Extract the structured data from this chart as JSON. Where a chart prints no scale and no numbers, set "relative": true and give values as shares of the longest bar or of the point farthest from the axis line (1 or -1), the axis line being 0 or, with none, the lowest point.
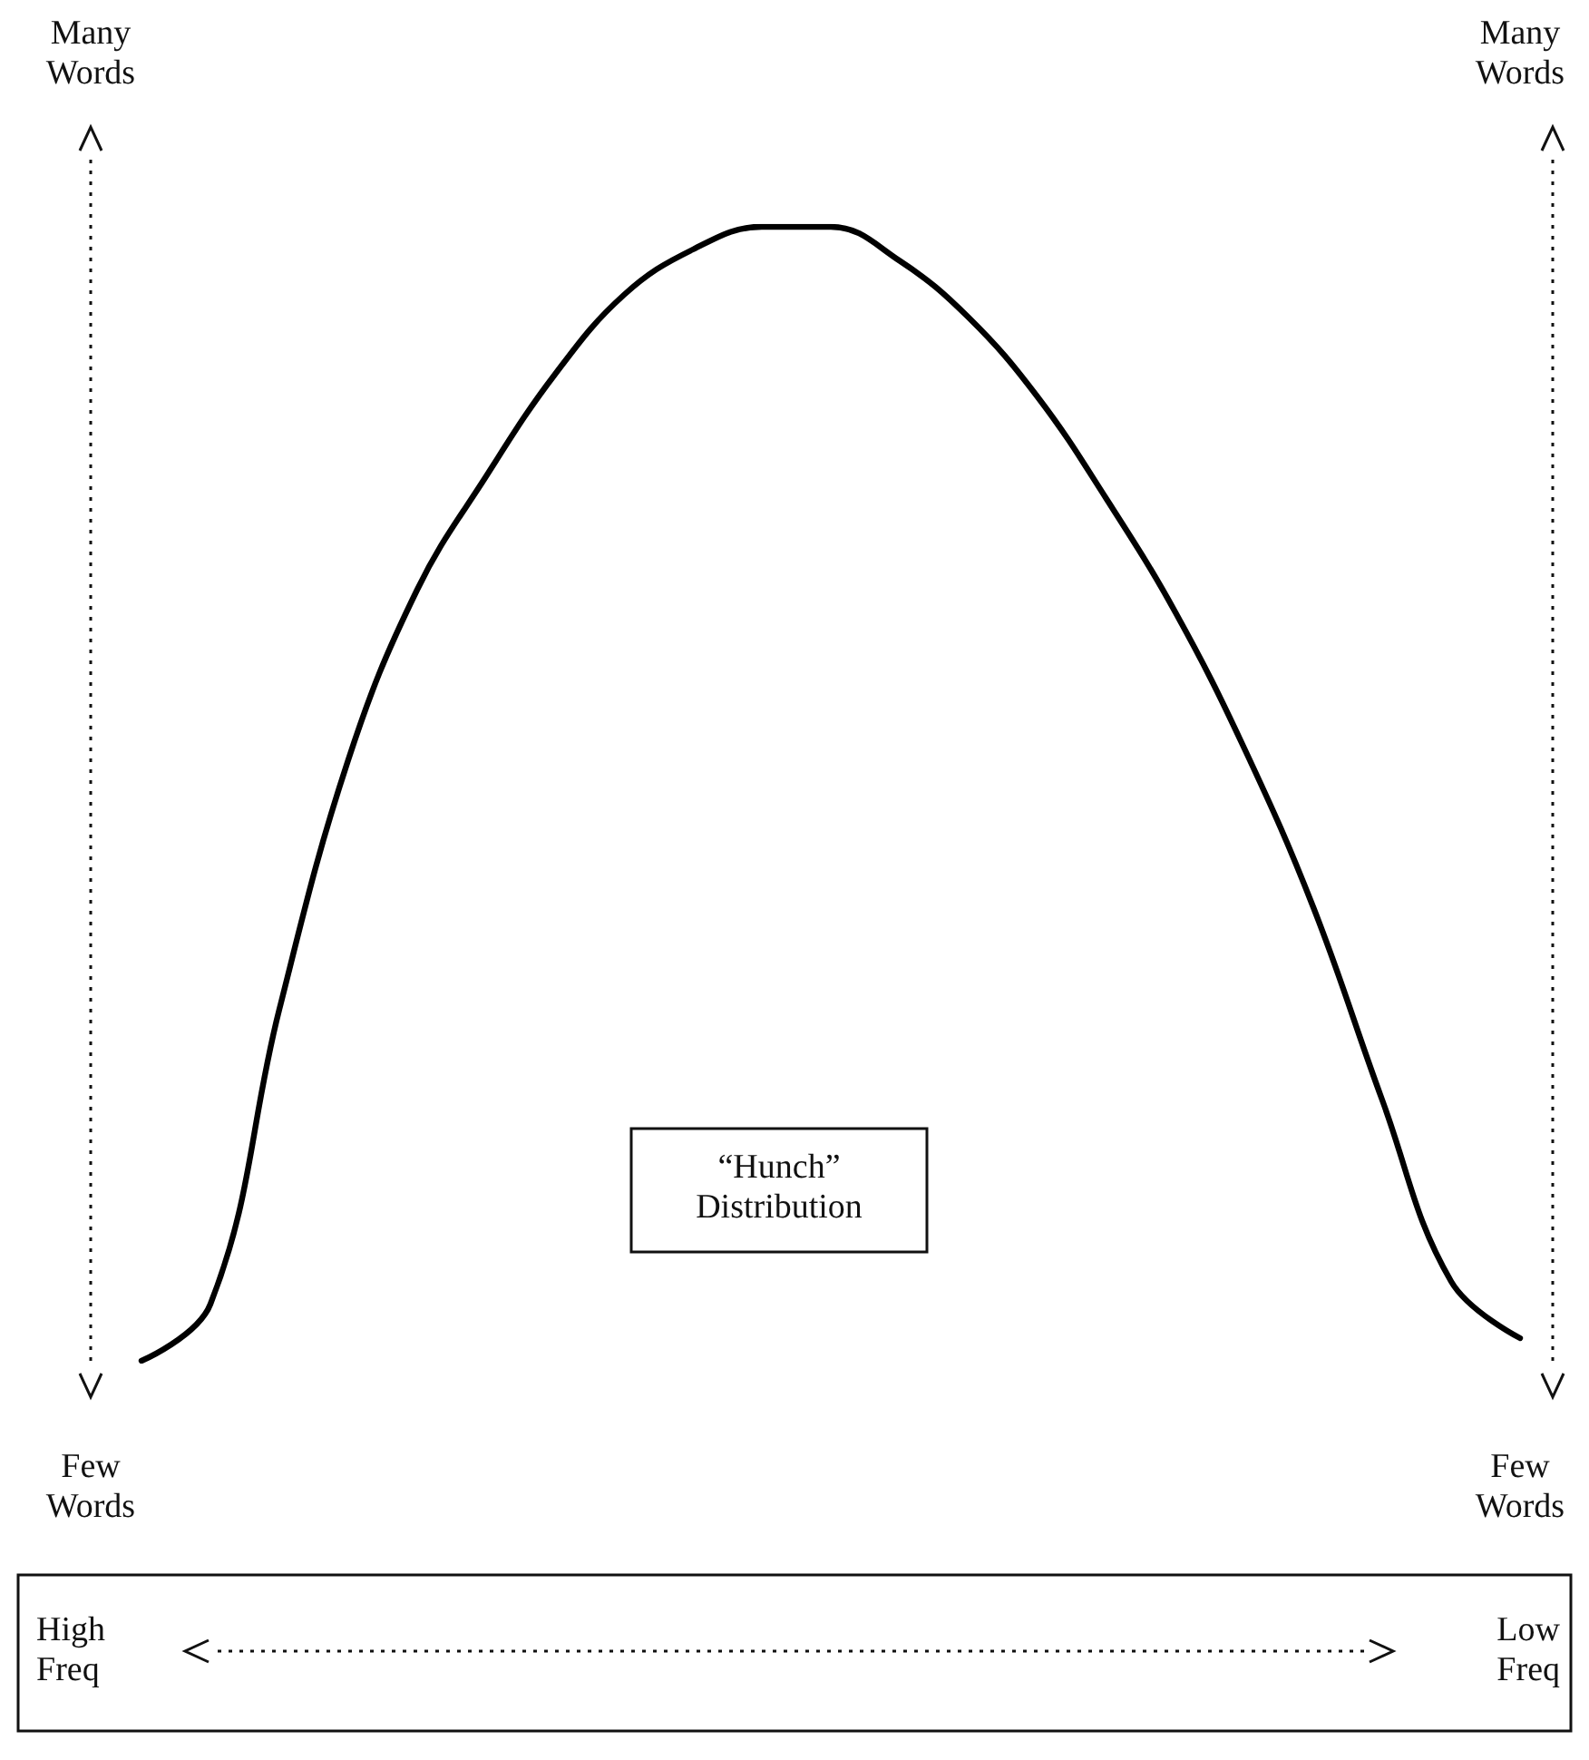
{
  "chart_data": {
    "type": "line",
    "relative": true,
    "categories": [
      null,
      null,
      null,
      null,
      null,
      null,
      null,
      null,
      null,
      null,
      null,
      null,
      null,
      null,
      null,
      null,
      null,
      null,
      null,
      null,
      null
    ],
    "series": [
      {
        "color": "#000000",
        "values": [
          0,
          0.05,
          0.31,
          0.53,
          0.68,
          0.78,
          0.87,
          0.94,
          0.98,
          1,
          1,
          0.97,
          0.92,
          0.85,
          0.76,
          0.66,
          0.54,
          0.4,
          0.23,
          0.07,
          0.02
        ]
      }
    ],
    "marker": "none",
    "line_style": "solid",
    "grid": false,
    "annotations": [
      "Many Words",
      "Few Words",
      "Many Words",
      "Few Words",
      "High Freq",
      "Low Freq",
      "“Hunch” Distribution"
    ]
  }
}
